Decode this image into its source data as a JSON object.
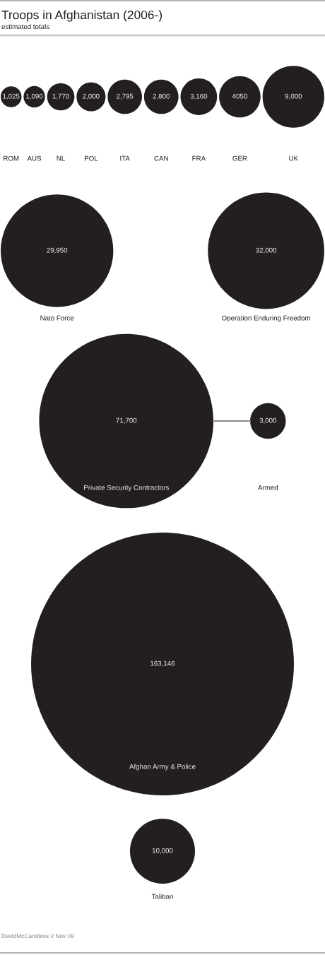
{
  "chart_data": [
    {
      "type": "other",
      "title": "Troops in Afghanistan (2006-)",
      "subtitle": "estimated totals",
      "categories": [
        "ROM",
        "AUS",
        "NL",
        "POL",
        "ITA",
        "CAN",
        "FRA",
        "GER",
        "UK"
      ],
      "values": [
        1025,
        1090,
        1770,
        2000,
        2795,
        2800,
        3160,
        4050,
        9000
      ],
      "value_labels": [
        "1,025",
        "1,090",
        "1,770",
        "2,000",
        "2,795",
        "2,800",
        "3,160",
        "4050",
        "9,000"
      ],
      "color": "#231f20"
    },
    {
      "type": "other",
      "categories": [
        "Nato Force",
        "Operation Enduring Freedom"
      ],
      "values": [
        29950,
        32000
      ],
      "value_labels": [
        "29,950",
        "32,000"
      ],
      "color": "#231f20"
    },
    {
      "type": "other",
      "categories": [
        "Private Security Contractors",
        "Armed"
      ],
      "values": [
        71700,
        3000
      ],
      "value_labels": [
        "71,700",
        "3,000"
      ],
      "color": "#231f20"
    },
    {
      "type": "other",
      "categories": [
        "Afghan Army & Police"
      ],
      "values": [
        163146
      ],
      "value_labels": [
        "163,146"
      ],
      "color": "#231f20"
    },
    {
      "type": "other",
      "categories": [
        "Taliban"
      ],
      "values": [
        10000
      ],
      "value_labels": [
        "10,000"
      ],
      "color": "#231f20",
      "annotations": [
        "DavidMcCandless // Nov 09"
      ]
    }
  ]
}
